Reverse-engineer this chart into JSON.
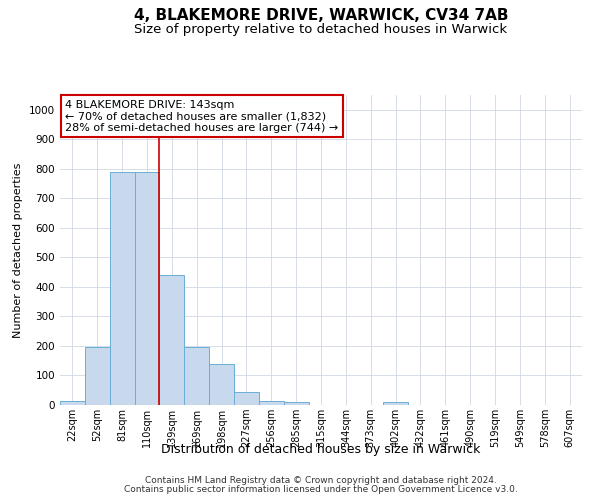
{
  "title": "4, BLAKEMORE DRIVE, WARWICK, CV34 7AB",
  "subtitle": "Size of property relative to detached houses in Warwick",
  "xlabel": "Distribution of detached houses by size in Warwick",
  "ylabel": "Number of detached properties",
  "categories": [
    "22sqm",
    "52sqm",
    "81sqm",
    "110sqm",
    "139sqm",
    "169sqm",
    "198sqm",
    "227sqm",
    "256sqm",
    "285sqm",
    "315sqm",
    "344sqm",
    "373sqm",
    "402sqm",
    "432sqm",
    "461sqm",
    "490sqm",
    "519sqm",
    "549sqm",
    "578sqm",
    "607sqm"
  ],
  "values": [
    15,
    195,
    790,
    790,
    440,
    195,
    140,
    45,
    15,
    10,
    0,
    0,
    0,
    10,
    0,
    0,
    0,
    0,
    0,
    0,
    0
  ],
  "bar_color": "#c8d9ee",
  "bar_edge_color": "#6baed6",
  "vline_color": "#cc0000",
  "vline_x": 3.5,
  "annotation_line1": "4 BLAKEMORE DRIVE: 143sqm",
  "annotation_line2": "← 70% of detached houses are smaller (1,832)",
  "annotation_line3": "28% of semi-detached houses are larger (744) →",
  "annotation_box_color": "#ffffff",
  "annotation_box_edge_color": "#cc0000",
  "ylim": [
    0,
    1050
  ],
  "yticks": [
    0,
    100,
    200,
    300,
    400,
    500,
    600,
    700,
    800,
    900,
    1000
  ],
  "grid_color": "#d0d8e4",
  "background_color": "#ffffff",
  "footer_line1": "Contains HM Land Registry data © Crown copyright and database right 2024.",
  "footer_line2": "Contains public sector information licensed under the Open Government Licence v3.0.",
  "title_fontsize": 11,
  "subtitle_fontsize": 9.5,
  "ylabel_fontsize": 8,
  "xlabel_fontsize": 9,
  "annotation_fontsize": 8,
  "footer_fontsize": 6.5,
  "tick_fontsize": 7,
  "ytick_fontsize": 7.5
}
